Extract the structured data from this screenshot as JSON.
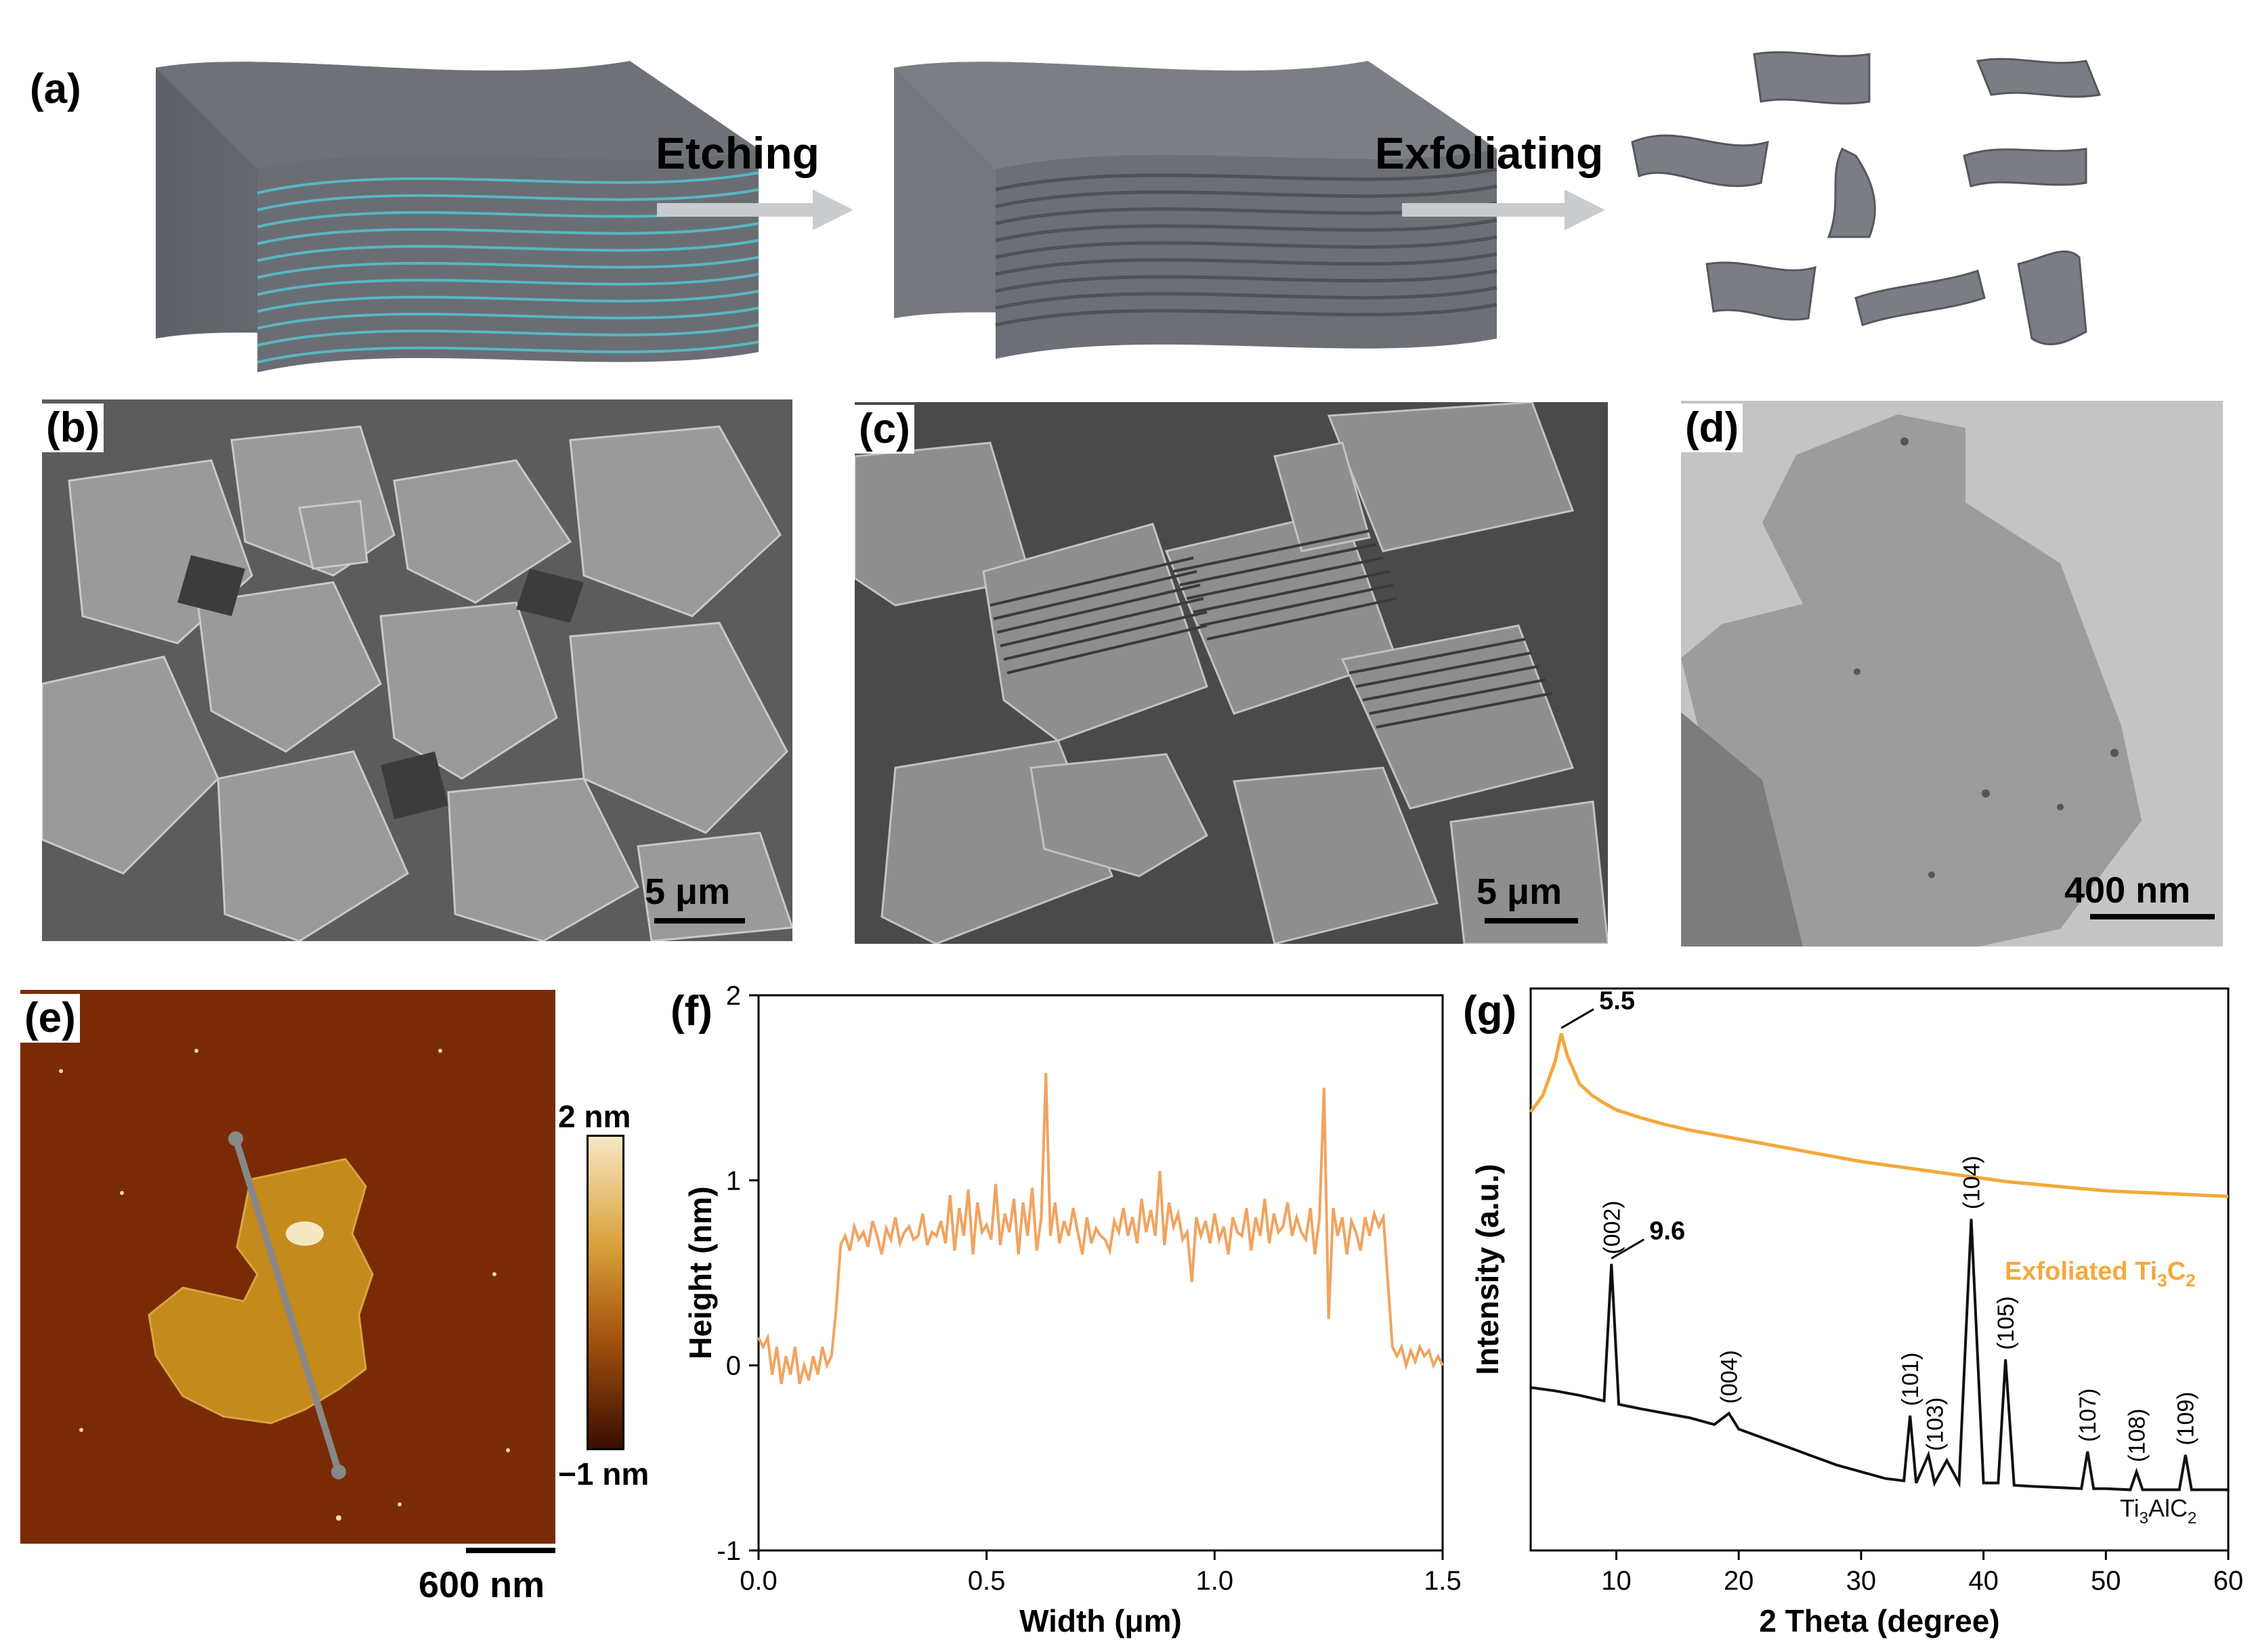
{
  "panel_a": {
    "label": "(a)",
    "step1": "Etching",
    "step2": "Exfoliating"
  },
  "panel_b": {
    "label": "(b)",
    "scale_bar": "5 μm"
  },
  "panel_c": {
    "label": "(c)",
    "scale_bar": "5 μm"
  },
  "panel_d": {
    "label": "(d)",
    "scale_bar": "400 nm"
  },
  "panel_e": {
    "label": "(e)",
    "colorbar_max": "2 nm",
    "colorbar_min": "−1 nm",
    "scale_bar": "600 nm",
    "colors": {
      "background": "#7a2b06",
      "flake": "#c58a1c",
      "line": "#888888"
    }
  },
  "panel_f": {
    "label": "(f)"
  },
  "panel_g": {
    "label": "(g)"
  },
  "chart_data": [
    {
      "type": "line",
      "xlabel": "Width (μm)",
      "ylabel": "Height (nm)",
      "xlim": [
        0,
        1.5
      ],
      "ylim": [
        -1,
        2
      ],
      "xticks": [
        "0.0",
        "0.5",
        "1.0",
        "1.5"
      ],
      "yticks": [
        "-1",
        "0",
        "1",
        "2"
      ],
      "color": "#f0a460",
      "series": [
        {
          "x": [
            0.0,
            0.01,
            0.02,
            0.03,
            0.04,
            0.05,
            0.06,
            0.07,
            0.08,
            0.09,
            0.1,
            0.11,
            0.12,
            0.13,
            0.14,
            0.15,
            0.16,
            0.17,
            0.18,
            0.19,
            0.2,
            0.21,
            0.22,
            0.23,
            0.24,
            0.25,
            0.26,
            0.27,
            0.28,
            0.29,
            0.3,
            0.31,
            0.32,
            0.33,
            0.34,
            0.35,
            0.36,
            0.37,
            0.38,
            0.39,
            0.4,
            0.41,
            0.42,
            0.43,
            0.44,
            0.45,
            0.46,
            0.47,
            0.48,
            0.49,
            0.5,
            0.51,
            0.52,
            0.53,
            0.54,
            0.55,
            0.56,
            0.57,
            0.58,
            0.59,
            0.6,
            0.61,
            0.62,
            0.63,
            0.64,
            0.65,
            0.66,
            0.67,
            0.68,
            0.69,
            0.7,
            0.71,
            0.72,
            0.73,
            0.74,
            0.75,
            0.76,
            0.77,
            0.78,
            0.79,
            0.8,
            0.81,
            0.82,
            0.83,
            0.84,
            0.85,
            0.86,
            0.87,
            0.88,
            0.89,
            0.9,
            0.91,
            0.92,
            0.93,
            0.94,
            0.95,
            0.96,
            0.97,
            0.98,
            0.99,
            1.0,
            1.01,
            1.02,
            1.03,
            1.04,
            1.05,
            1.06,
            1.07,
            1.08,
            1.09,
            1.1,
            1.11,
            1.12,
            1.13,
            1.14,
            1.15,
            1.16,
            1.17,
            1.18,
            1.19,
            1.2,
            1.21,
            1.22,
            1.23,
            1.24,
            1.25,
            1.26,
            1.27,
            1.28,
            1.29,
            1.3,
            1.31,
            1.32,
            1.33,
            1.34,
            1.35,
            1.36,
            1.37,
            1.38,
            1.39,
            1.4,
            1.41,
            1.42,
            1.43,
            1.44,
            1.45,
            1.46,
            1.47,
            1.48,
            1.49,
            1.5
          ],
          "y": [
            0.15,
            0.1,
            0.15,
            -0.05,
            0.1,
            -0.1,
            0.05,
            -0.05,
            0.1,
            -0.1,
            0.0,
            -0.08,
            0.05,
            -0.05,
            0.1,
            0.0,
            0.05,
            0.3,
            0.65,
            0.7,
            0.62,
            0.75,
            0.68,
            0.72,
            0.64,
            0.78,
            0.7,
            0.6,
            0.74,
            0.68,
            0.8,
            0.66,
            0.72,
            0.75,
            0.68,
            0.7,
            0.82,
            0.65,
            0.72,
            0.7,
            0.78,
            0.66,
            0.92,
            0.62,
            0.85,
            0.7,
            0.95,
            0.6,
            0.88,
            0.72,
            0.76,
            0.68,
            0.98,
            0.65,
            0.82,
            0.72,
            0.9,
            0.6,
            0.88,
            0.7,
            0.96,
            0.62,
            0.8,
            1.58,
            0.7,
            0.88,
            0.66,
            0.78,
            0.7,
            0.85,
            0.72,
            0.6,
            0.8,
            0.66,
            0.74,
            0.7,
            0.68,
            0.62,
            0.78,
            0.72,
            0.85,
            0.7,
            0.8,
            0.66,
            0.9,
            0.72,
            0.84,
            0.7,
            1.05,
            0.65,
            0.88,
            0.75,
            0.82,
            0.68,
            0.72,
            0.45,
            0.8,
            0.7,
            0.78,
            0.66,
            0.82,
            0.68,
            0.75,
            0.6,
            0.8,
            0.72,
            0.7,
            0.85,
            0.62,
            0.8,
            0.7,
            0.9,
            0.66,
            0.82,
            0.72,
            0.75,
            0.88,
            0.7,
            0.8,
            0.72,
            0.68,
            0.85,
            0.6,
            0.8,
            1.5,
            0.25,
            0.85,
            0.7,
            0.8,
            0.6,
            0.78,
            0.72,
            0.62,
            0.8,
            0.7,
            0.82,
            0.75,
            0.8,
            0.45,
            0.1,
            0.05,
            0.1,
            0.0,
            0.08,
            0.02,
            0.1,
            0.05,
            0.08,
            0.0,
            0.05,
            0.0
          ]
        }
      ]
    },
    {
      "type": "line",
      "xlabel": "2 Theta (degree)",
      "ylabel": "Intensity (a.u.)",
      "xlim": [
        3,
        60
      ],
      "xticks": [
        "10",
        "20",
        "30",
        "40",
        "50",
        "60"
      ],
      "series": [
        {
          "name": "Exfoliated Ti3C2",
          "color": "#f2a93b",
          "x": [
            3,
            4,
            5,
            5.5,
            6,
            7,
            8,
            9,
            10,
            12,
            14,
            16,
            18,
            20,
            22,
            24,
            26,
            28,
            30,
            32,
            34,
            36,
            38,
            40,
            42,
            44,
            46,
            48,
            50,
            52,
            54,
            56,
            58,
            60
          ],
          "y": [
            3.9,
            4.05,
            4.35,
            4.6,
            4.4,
            4.15,
            4.05,
            3.98,
            3.92,
            3.85,
            3.79,
            3.74,
            3.7,
            3.66,
            3.62,
            3.58,
            3.54,
            3.5,
            3.46,
            3.43,
            3.4,
            3.37,
            3.34,
            3.31,
            3.28,
            3.26,
            3.24,
            3.22,
            3.2,
            3.19,
            3.18,
            3.17,
            3.16,
            3.15
          ]
        },
        {
          "name": "Ti3AlC2",
          "color": "#111111",
          "x": [
            3,
            5,
            7,
            9,
            9.6,
            10.2,
            12,
            14,
            16,
            18,
            19.2,
            20,
            22,
            24,
            26,
            28,
            30,
            32,
            33.5,
            34,
            34.5,
            35.5,
            36,
            37,
            38,
            39,
            40,
            41.2,
            41.8,
            42.5,
            44,
            46,
            48,
            48.5,
            49,
            50,
            52,
            52.5,
            53,
            54,
            56,
            56.5,
            57,
            58,
            60
          ],
          "y": [
            1.45,
            1.42,
            1.38,
            1.33,
            2.55,
            1.3,
            1.26,
            1.22,
            1.18,
            1.12,
            1.22,
            1.08,
            1.0,
            0.92,
            0.84,
            0.76,
            0.7,
            0.64,
            0.62,
            1.2,
            0.6,
            0.85,
            0.6,
            0.8,
            0.6,
            2.95,
            0.6,
            0.6,
            1.7,
            0.58,
            0.57,
            0.56,
            0.55,
            0.88,
            0.55,
            0.55,
            0.54,
            0.7,
            0.54,
            0.54,
            0.54,
            0.85,
            0.54,
            0.54,
            0.54
          ]
        }
      ],
      "annotations": [
        {
          "text": "5.5",
          "x": 5.5
        },
        {
          "text": "9.6",
          "x": 9.6
        },
        {
          "text": "(002)",
          "x": 9.6
        },
        {
          "text": "(004)",
          "x": 19.2
        },
        {
          "text": "(101)",
          "x": 34.0
        },
        {
          "text": "(103)",
          "x": 36.0
        },
        {
          "text": "(104)",
          "x": 39.0
        },
        {
          "text": "(105)",
          "x": 41.8
        },
        {
          "text": "(107)",
          "x": 48.5
        },
        {
          "text": "(108)",
          "x": 52.5
        },
        {
          "text": "(109)",
          "x": 56.5
        }
      ]
    }
  ]
}
